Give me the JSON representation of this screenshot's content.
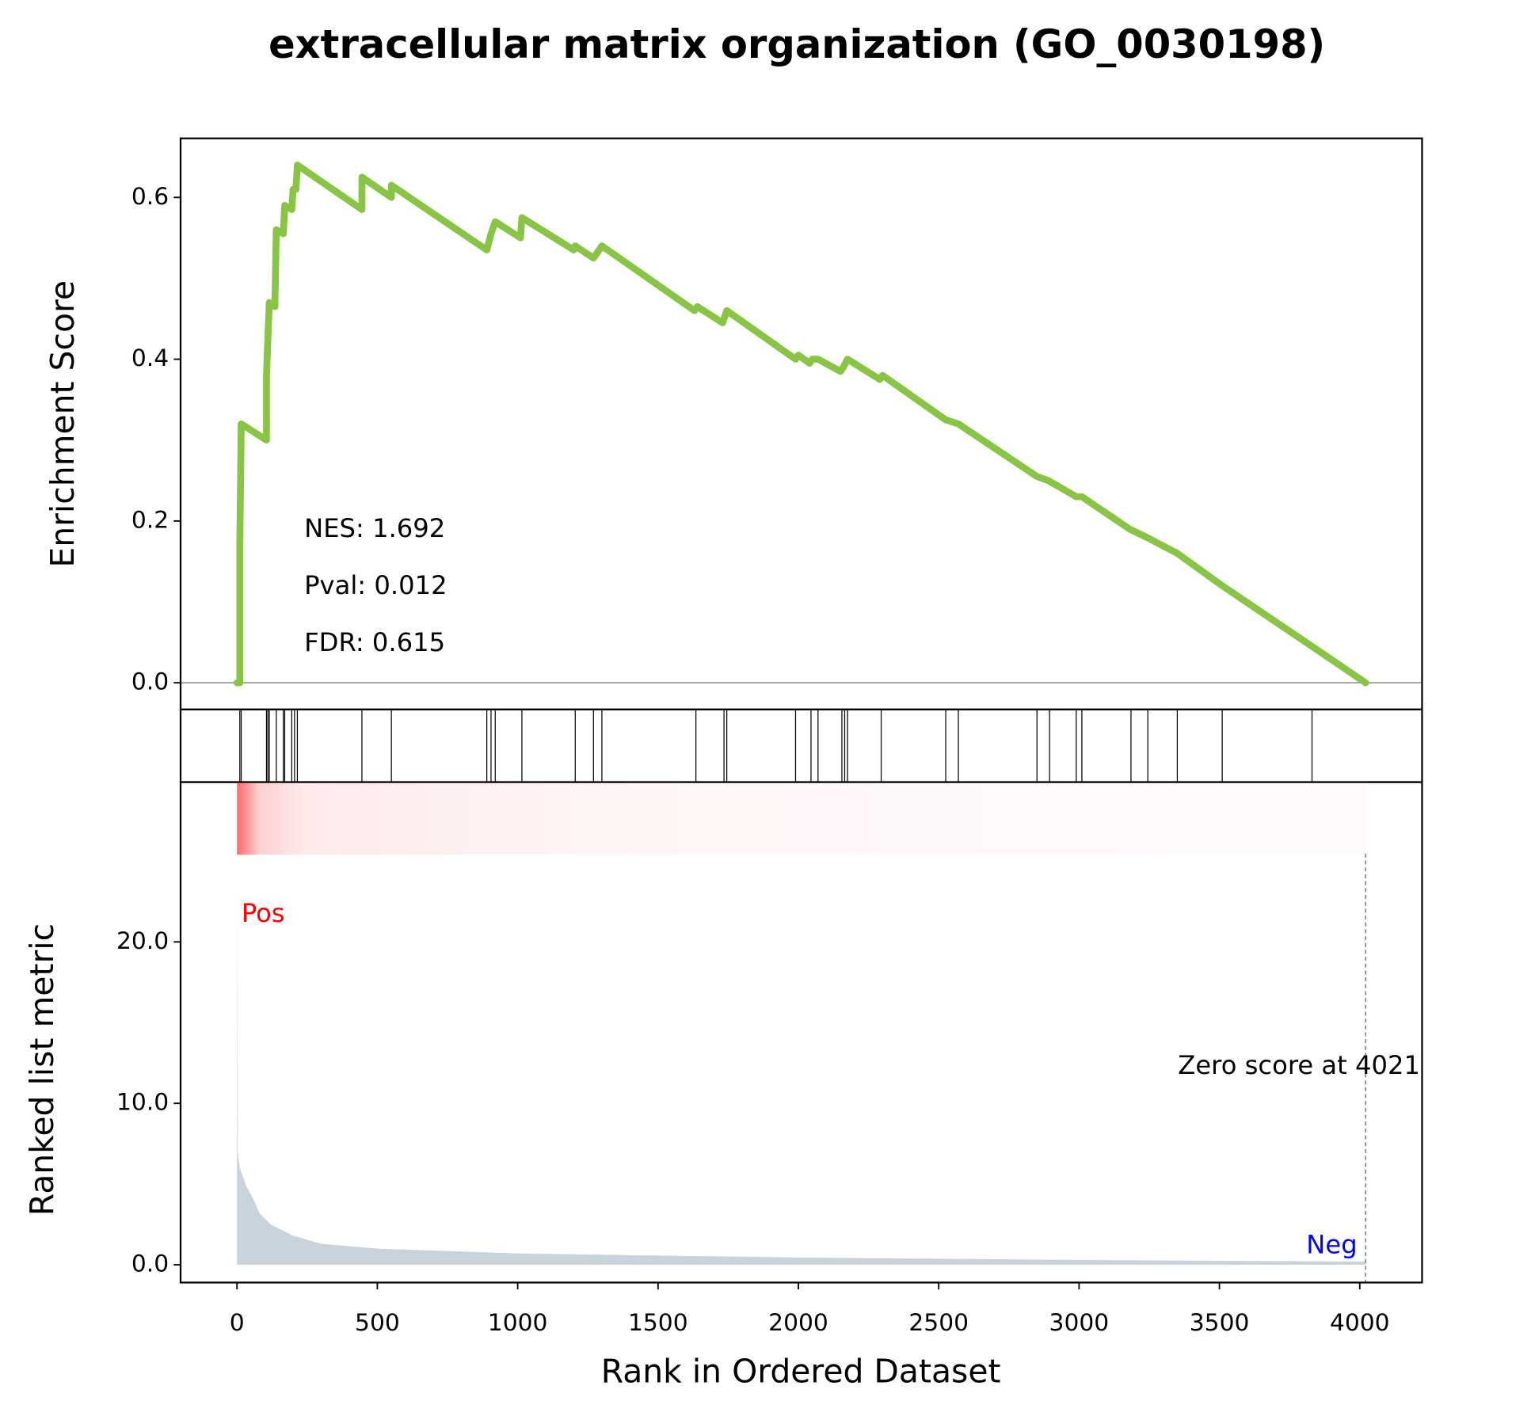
{
  "chart_data": [
    {
      "type": "line",
      "title": "extracellular matrix organization (GO_0030198)",
      "ylabel": "Enrichment Score",
      "annotations": [
        "NES: 1.692",
        "Pval: 0.012",
        "FDR: 0.615"
      ],
      "x": [
        0,
        10,
        10,
        15,
        105,
        105,
        115,
        135,
        140,
        165,
        170,
        195,
        200,
        210,
        215,
        445,
        445,
        550,
        550,
        890,
        905,
        920,
        1010,
        1015,
        1200,
        1205,
        1270,
        1300,
        1630,
        1640,
        1730,
        1745,
        1990,
        2000,
        2040,
        2050,
        2070,
        2150,
        2160,
        2175,
        2290,
        2300,
        2525,
        2570,
        2850,
        2890,
        2990,
        3010,
        3180,
        3240,
        3350,
        3510,
        3830,
        4021
      ],
      "values": [
        0,
        0,
        0.17,
        0.32,
        0.3,
        0.38,
        0.47,
        0.465,
        0.56,
        0.555,
        0.59,
        0.585,
        0.61,
        0.61,
        0.64,
        0.585,
        0.625,
        0.6,
        0.615,
        0.535,
        0.555,
        0.57,
        0.55,
        0.575,
        0.535,
        0.54,
        0.525,
        0.54,
        0.46,
        0.465,
        0.445,
        0.46,
        0.4,
        0.405,
        0.395,
        0.4,
        0.4,
        0.385,
        0.39,
        0.4,
        0.375,
        0.38,
        0.325,
        0.32,
        0.255,
        0.25,
        0.23,
        0.23,
        0.19,
        0.18,
        0.16,
        0.12,
        0.045,
        0
      ],
      "color": "#88c544",
      "xlim": [
        -201,
        4222
      ],
      "ylim": [
        -0.033,
        0.673
      ],
      "yticks": [
        {
          "value": 0,
          "label": "0.0"
        },
        0.2,
        0.4,
        0.6
      ]
    },
    {
      "type": "hits",
      "x": [
        10,
        15,
        105,
        110,
        115,
        140,
        165,
        170,
        195,
        205,
        215,
        445,
        550,
        890,
        905,
        920,
        1015,
        1205,
        1270,
        1300,
        1635,
        1735,
        1745,
        1990,
        2045,
        2070,
        2155,
        2165,
        2175,
        2295,
        2525,
        2570,
        2850,
        2895,
        2990,
        3010,
        3185,
        3245,
        3350,
        3510,
        3830
      ],
      "color": "#000000",
      "xlim": [
        -201,
        4222
      ]
    },
    {
      "type": "area",
      "ylabel": "Ranked list metric",
      "xlabel": "Rank in Ordered Dataset",
      "x": [
        0,
        2,
        10,
        30,
        60,
        80,
        120,
        200,
        300,
        500,
        1000,
        2000,
        3000,
        4021
      ],
      "values": [
        24,
        7,
        6,
        5,
        4,
        3.2,
        2.5,
        1.8,
        1.3,
        1.0,
        0.7,
        0.45,
        0.3,
        0.2
      ],
      "color": "#c9d3dc",
      "xlim": [
        -201,
        4222
      ],
      "ylim": [
        -1.1,
        29.9
      ],
      "yticks": [
        {
          "value": 0,
          "label": "0.0"
        },
        {
          "value": 10,
          "label": "10.0"
        },
        {
          "value": 20,
          "label": "20.0"
        }
      ],
      "xticks": [
        0,
        500,
        1000,
        1500,
        2000,
        2500,
        3000,
        3500,
        4000
      ],
      "zero_score": 4021,
      "annotations": [
        {
          "text": "Pos",
          "color": "#ff0000"
        },
        {
          "text": "Neg",
          "color": "#0000ff"
        },
        {
          "text": "Zero score at 4021",
          "color": "#000000"
        }
      ]
    }
  ]
}
